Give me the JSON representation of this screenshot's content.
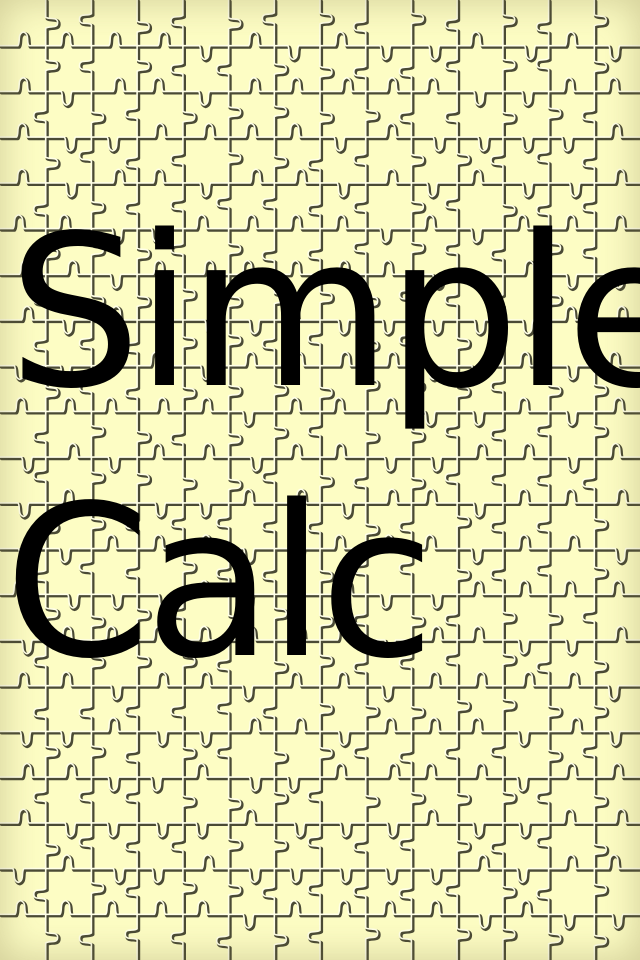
{
  "splash": {
    "title_line_1": "Simple",
    "title_line_2": "Calc",
    "background_pattern": "jigsaw-puzzle-pattern",
    "colors": {
      "background": "#fdfdc4",
      "title_text": "#000000",
      "puzzle_edge_dark": "#4a4a35",
      "puzzle_edge_light": "#ffffe8"
    }
  }
}
